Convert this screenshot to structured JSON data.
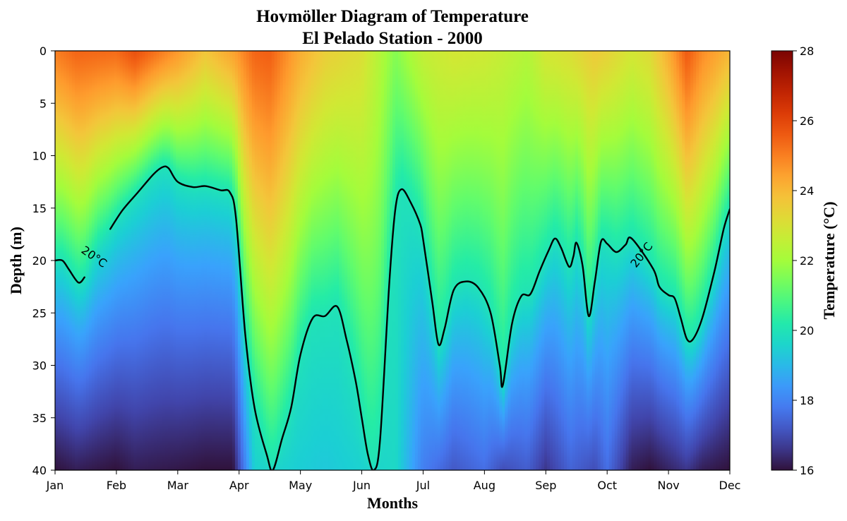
{
  "chart_data": {
    "type": "heatmap",
    "title": "Hovmöller Diagram of Temperature",
    "subtitle": "El Pelado Station - 2000",
    "xlabel": "Months",
    "ylabel": "Depth (m)",
    "x_tick_labels": [
      "Jan",
      "Feb",
      "Mar",
      "Apr",
      "May",
      "Jun",
      "Jul",
      "Aug",
      "Sep",
      "Oct",
      "Nov",
      "Dec"
    ],
    "y_tick_labels": [
      "0",
      "5",
      "10",
      "15",
      "20",
      "25",
      "30",
      "35",
      "40"
    ],
    "y_ticks": [
      0,
      5,
      10,
      15,
      20,
      25,
      30,
      35,
      40
    ],
    "ylim": [
      40,
      0
    ],
    "xlim": [
      "Jan",
      "Dec"
    ],
    "colorbar": {
      "label": "Temperature (°C)",
      "min": 16,
      "max": 28,
      "ticks": [
        16,
        18,
        20,
        22,
        24,
        26,
        28
      ],
      "tick_labels": [
        "16",
        "18",
        "20",
        "22",
        "24",
        "26",
        "28"
      ],
      "colormap": "turbo"
    },
    "contour": {
      "level": 20,
      "label": "20°C",
      "color": "#000000",
      "path_month_depth": [
        [
          0.0,
          20.0
        ],
        [
          0.12,
          20.0
        ],
        [
          0.22,
          20.8
        ],
        [
          0.38,
          22.1
        ],
        [
          0.48,
          21.6
        ],
        [
          0.56,
          20.5
        ],
        [
          0.7,
          18.5
        ],
        [
          0.9,
          17.0
        ],
        [
          1.1,
          15.2
        ],
        [
          1.35,
          13.5
        ],
        [
          1.6,
          11.8
        ],
        [
          1.75,
          11.1
        ],
        [
          1.85,
          11.2
        ],
        [
          2.0,
          12.5
        ],
        [
          2.25,
          13.0
        ],
        [
          2.45,
          12.9
        ],
        [
          2.7,
          13.3
        ],
        [
          2.85,
          13.5
        ],
        [
          2.95,
          16.0
        ],
        [
          3.1,
          27.0
        ],
        [
          3.25,
          34.0
        ],
        [
          3.45,
          38.5
        ],
        [
          3.55,
          40.0
        ],
        [
          3.7,
          37.0
        ],
        [
          3.85,
          34.0
        ],
        [
          4.0,
          29.0
        ],
        [
          4.2,
          25.5
        ],
        [
          4.4,
          25.3
        ],
        [
          4.6,
          24.4
        ],
        [
          4.75,
          27.5
        ],
        [
          4.9,
          31.5
        ],
        [
          5.0,
          35.0
        ],
        [
          5.1,
          38.5
        ],
        [
          5.2,
          40.0
        ],
        [
          5.3,
          37.0
        ],
        [
          5.45,
          22.0
        ],
        [
          5.55,
          15.0
        ],
        [
          5.65,
          13.2
        ],
        [
          5.8,
          14.5
        ],
        [
          5.95,
          16.5
        ],
        [
          6.0,
          18.0
        ],
        [
          6.15,
          24.0
        ],
        [
          6.25,
          28.0
        ],
        [
          6.35,
          26.5
        ],
        [
          6.5,
          22.8
        ],
        [
          6.7,
          22.0
        ],
        [
          6.9,
          22.6
        ],
        [
          7.1,
          25.0
        ],
        [
          7.25,
          30.0
        ],
        [
          7.3,
          31.9
        ],
        [
          7.45,
          26.0
        ],
        [
          7.6,
          23.4
        ],
        [
          7.75,
          23.2
        ],
        [
          7.9,
          21.0
        ],
        [
          8.05,
          19.0
        ],
        [
          8.15,
          17.9
        ],
        [
          8.25,
          18.8
        ],
        [
          8.38,
          20.6
        ],
        [
          8.45,
          19.6
        ],
        [
          8.5,
          18.3
        ],
        [
          8.6,
          20.5
        ],
        [
          8.7,
          25.3
        ],
        [
          8.8,
          22.0
        ],
        [
          8.9,
          18.2
        ],
        [
          9.0,
          18.4
        ],
        [
          9.15,
          19.2
        ],
        [
          9.3,
          18.5
        ],
        [
          9.4,
          17.9
        ],
        [
          9.75,
          20.8
        ],
        [
          9.85,
          22.5
        ],
        [
          10.0,
          23.3
        ],
        [
          10.1,
          23.6
        ],
        [
          10.2,
          25.5
        ],
        [
          10.3,
          27.5
        ],
        [
          10.4,
          27.5
        ],
        [
          10.55,
          25.5
        ],
        [
          10.75,
          21.0
        ],
        [
          10.9,
          17.0
        ],
        [
          11.0,
          15.1
        ]
      ]
    },
    "field_profile": {
      "months": [
        0,
        0.35,
        1.0,
        1.3,
        2.0,
        2.45,
        2.9,
        3.25,
        3.5,
        4.0,
        4.4,
        5.0,
        5.55,
        6.0,
        6.5,
        7.0,
        7.3,
        7.7,
        8.0,
        8.4,
        8.8,
        9.0,
        9.4,
        9.7,
        10.0,
        10.3,
        10.55,
        11.0
      ],
      "surface_temp": [
        25.0,
        25.4,
        25.3,
        25.8,
        24.6,
        23.7,
        24.4,
        25.4,
        25.5,
        24.2,
        23.5,
        23.1,
        21.6,
        22.6,
        22.9,
        22.8,
        22.6,
        22.3,
        22.9,
        23.1,
        23.6,
        23.4,
        22.9,
        23.2,
        24.2,
        25.6,
        24.8,
        24.0
      ],
      "bottom_temp": [
        16.0,
        16.2,
        16.0,
        16.2,
        16.1,
        16.0,
        16.0,
        19.5,
        19.6,
        19.4,
        19.3,
        19.5,
        19.7,
        17.9,
        17.2,
        17.6,
        17.0,
        17.3,
        16.6,
        17.4,
        17.0,
        17.6,
        16.2,
        16.0,
        16.3,
        16.6,
        16.2,
        16.0
      ]
    }
  }
}
